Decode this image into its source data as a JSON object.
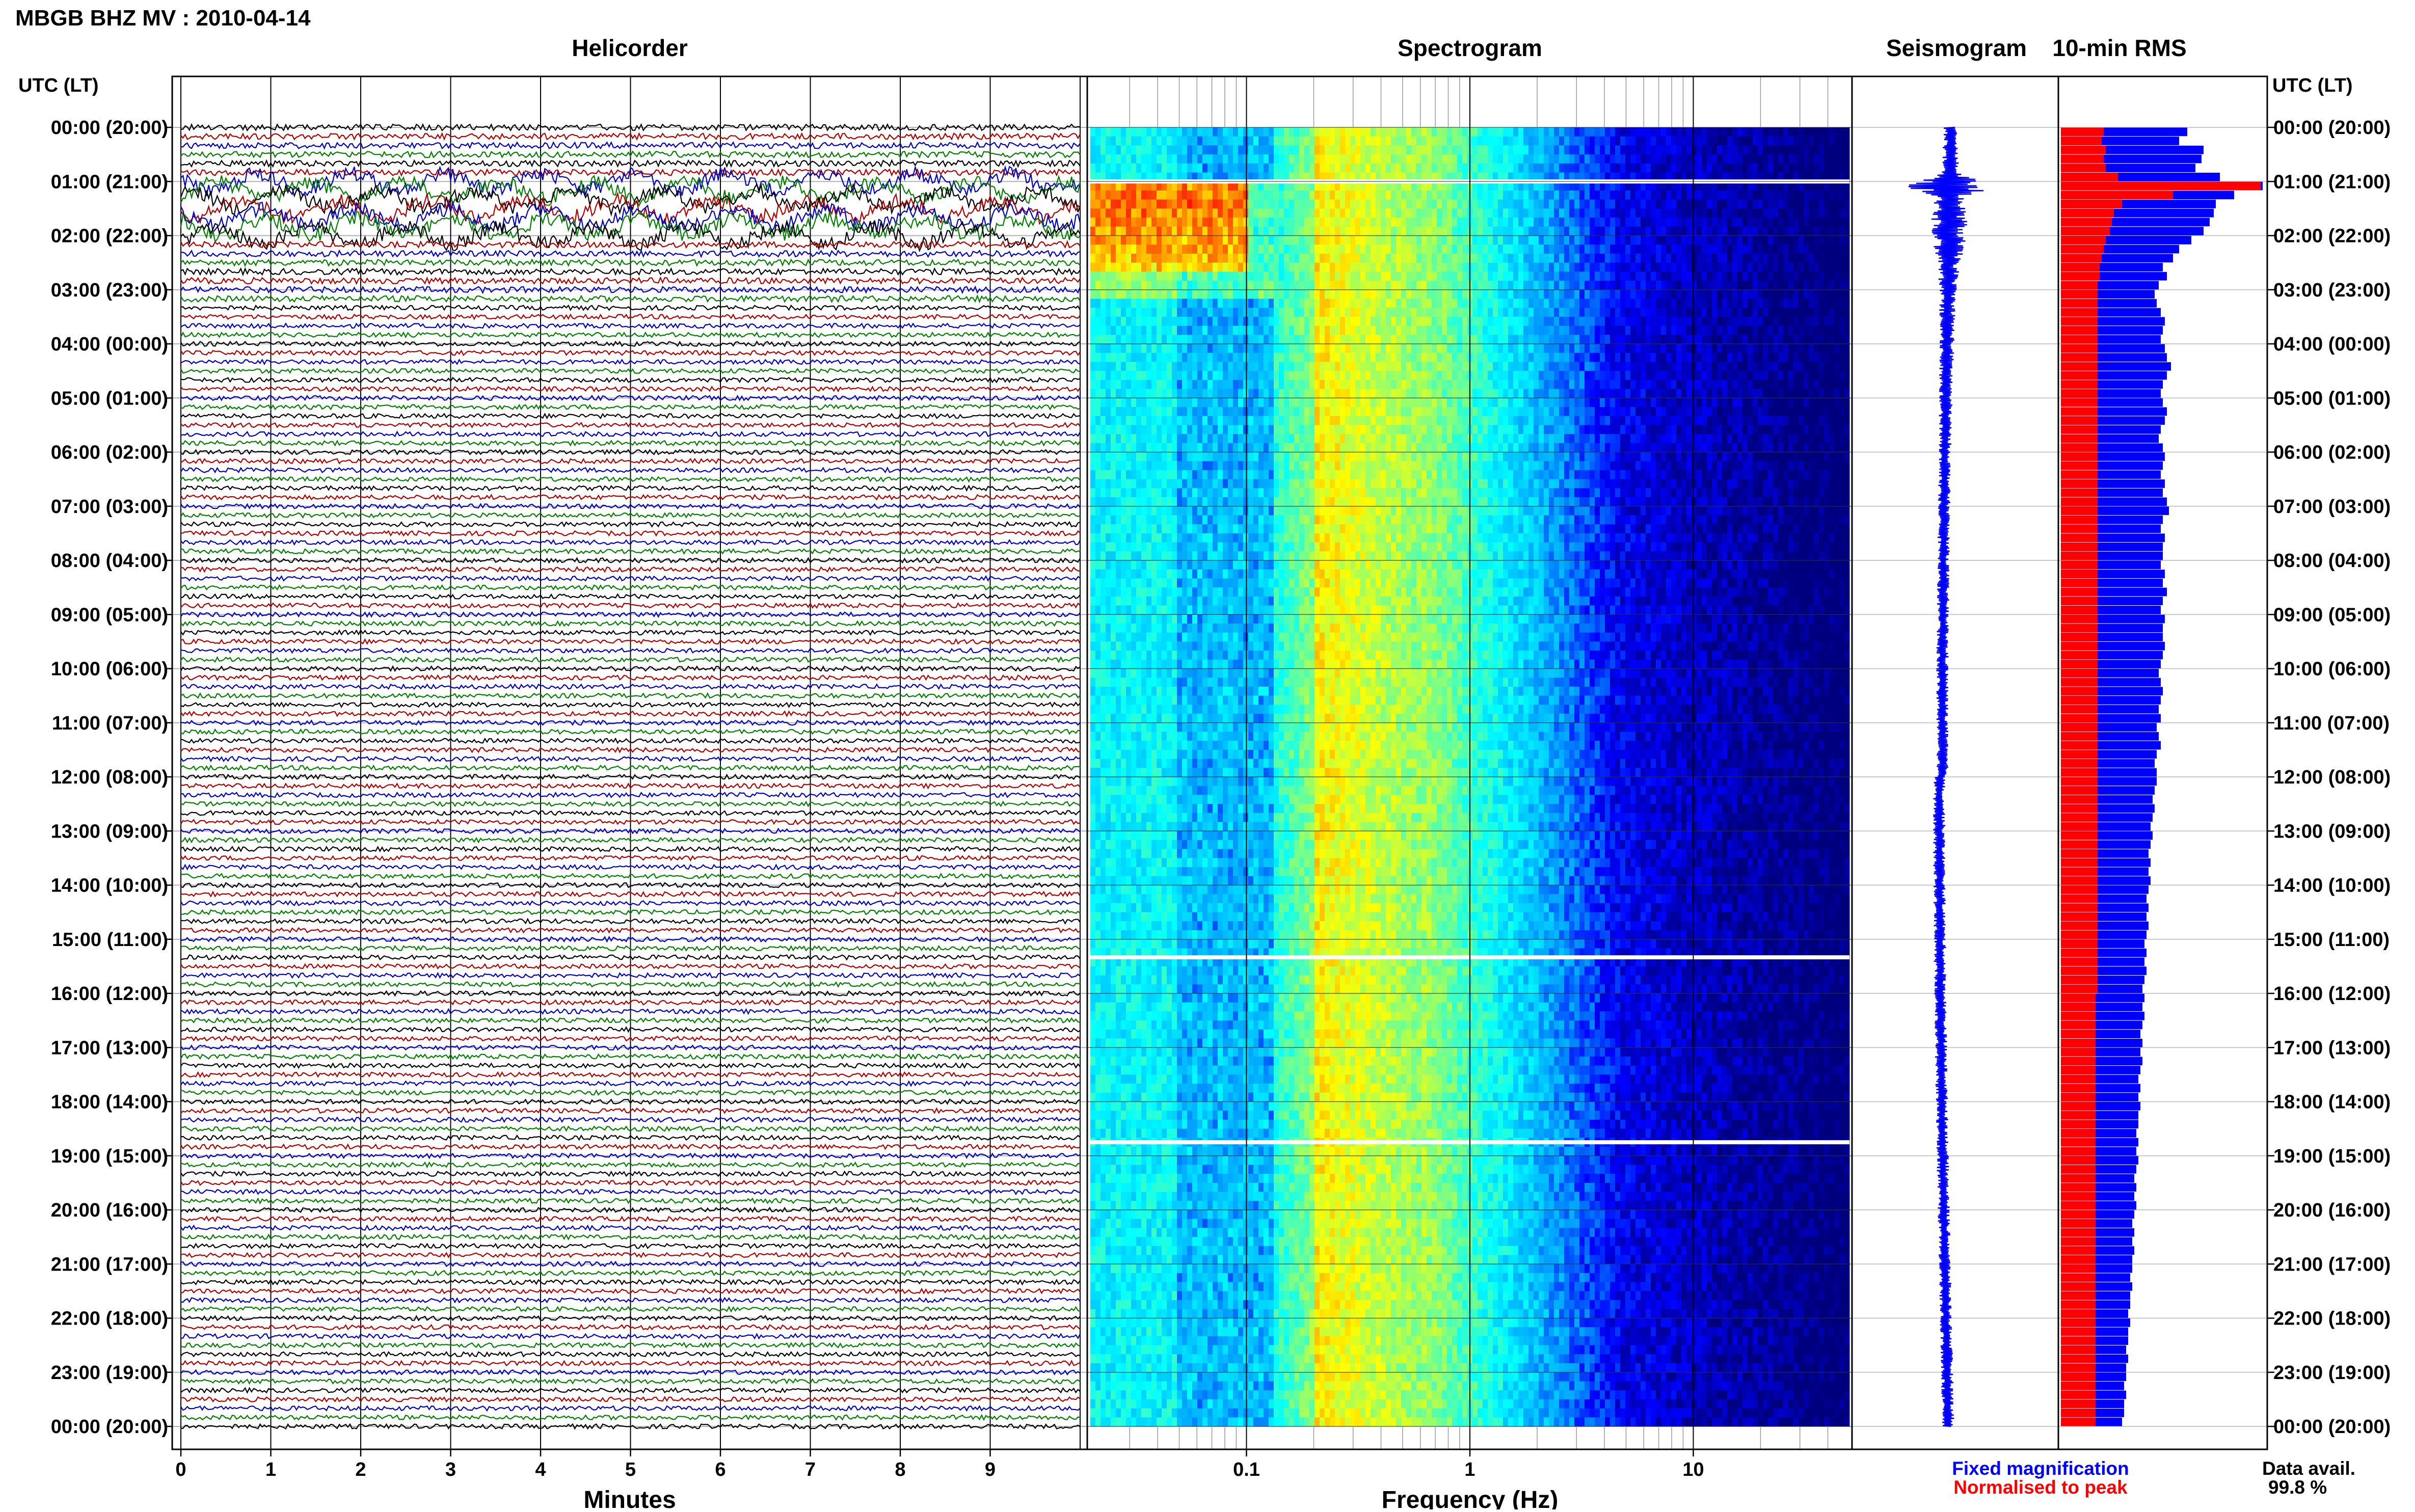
{
  "header": {
    "station_title": "MBGB BHZ MV : 2010-04-14",
    "panel_titles": {
      "helicorder": "Helicorder",
      "spectrogram": "Spectrogram",
      "seismogram": "Seismogram",
      "rms": "10-min RMS"
    },
    "left_axis_label": "UTC (LT)",
    "right_axis_label": "UTC (LT)"
  },
  "chart_data": [
    {
      "type": "line",
      "name": "helicorder",
      "title": "Helicorder",
      "xlabel": "Minutes",
      "ylabel": "UTC (LT)",
      "xlim": [
        0,
        10
      ],
      "x_ticks": [
        "0",
        "1",
        "2",
        "3",
        "4",
        "5",
        "6",
        "7",
        "8",
        "9"
      ],
      "trace_count": 144,
      "trace_interval_minutes": 10,
      "trace_colors": [
        "#000000",
        "#b00000",
        "#0000c0",
        "#008000"
      ],
      "high_amplitude_hours_utc": [
        0.9,
        2.0
      ],
      "grid": true
    },
    {
      "type": "heatmap",
      "name": "spectrogram",
      "title": "Spectrogram",
      "xlabel": "Frequency (Hz)",
      "x_scale": "log",
      "xlim": [
        0.02,
        50
      ],
      "x_ticks": [
        "0.1",
        "1",
        "10"
      ],
      "peak_power_band_hz": [
        0.2,
        0.3
      ],
      "strong_low_freq_event": {
        "time_utc": "01:00-02:30",
        "freq_hz": [
          0.02,
          0.1
        ]
      },
      "data_gaps_utc": [
        "01:00",
        "15:20",
        "18:45"
      ],
      "colormap": [
        "#00007f",
        "#0000ff",
        "#00a0ff",
        "#00ffff",
        "#80ff80",
        "#ffff00",
        "#ff8000",
        "#ff0000"
      ]
    },
    {
      "type": "line",
      "name": "seismogram",
      "title": "Seismogram",
      "color": "#0000ff",
      "event_time_utc": "01:05"
    },
    {
      "type": "bar",
      "name": "rms",
      "title": "10-min RMS",
      "orientation": "horizontal",
      "interval_minutes": 10,
      "series": [
        {
          "name": "Fixed magnification",
          "color": "#0000ff",
          "values": [
            0.62,
            0.58,
            0.7,
            0.69,
            0.66,
            0.78,
            0.99,
            0.85,
            0.76,
            0.75,
            0.73,
            0.7,
            0.64,
            0.58,
            0.55,
            0.5,
            0.52,
            0.48,
            0.46,
            0.47,
            0.49,
            0.51,
            0.5,
            0.49,
            0.51,
            0.52,
            0.54,
            0.52,
            0.5,
            0.49,
            0.5,
            0.52,
            0.51,
            0.49,
            0.48,
            0.5,
            0.51,
            0.5,
            0.49,
            0.51,
            0.5,
            0.52,
            0.53,
            0.5,
            0.49,
            0.51,
            0.5,
            0.5,
            0.49,
            0.51,
            0.5,
            0.52,
            0.5,
            0.49,
            0.51,
            0.5,
            0.5,
            0.51,
            0.5,
            0.49,
            0.48,
            0.49,
            0.5,
            0.49,
            0.48,
            0.49,
            0.47,
            0.48,
            0.49,
            0.47,
            0.46,
            0.47,
            0.47,
            0.46,
            0.45,
            0.46,
            0.45,
            0.44,
            0.45,
            0.44,
            0.43,
            0.44,
            0.43,
            0.44,
            0.43,
            0.42,
            0.43,
            0.42,
            0.43,
            0.42,
            0.41,
            0.42,
            0.41,
            0.42,
            0.41,
            0.4,
            0.41,
            0.4,
            0.41,
            0.4,
            0.39,
            0.4,
            0.39,
            0.4,
            0.39,
            0.38,
            0.39,
            0.38,
            0.39,
            0.38,
            0.38,
            0.37,
            0.38,
            0.37,
            0.38,
            0.37,
            0.36,
            0.37,
            0.36,
            0.37,
            0.36,
            0.35,
            0.36,
            0.35,
            0.36,
            0.35,
            0.35,
            0.34,
            0.35,
            0.34,
            0.34,
            0.33,
            0.34,
            0.33,
            0.33,
            0.32,
            0.33,
            0.32,
            0.32,
            0.31,
            0.32,
            0.31,
            0.31,
            0.3
          ]
        },
        {
          "name": "Normalised to peak",
          "color": "#ff0000",
          "values": [
            0.21,
            0.2,
            0.22,
            0.21,
            0.22,
            0.28,
            0.98,
            0.55,
            0.3,
            0.26,
            0.25,
            0.24,
            0.22,
            0.21,
            0.2,
            0.19,
            0.19,
            0.18,
            0.18,
            0.18,
            0.18,
            0.18,
            0.18,
            0.18,
            0.18,
            0.18,
            0.18,
            0.18,
            0.18,
            0.18,
            0.18,
            0.18,
            0.18,
            0.18,
            0.18,
            0.18,
            0.18,
            0.18,
            0.18,
            0.18,
            0.18,
            0.18,
            0.18,
            0.18,
            0.18,
            0.18,
            0.18,
            0.18,
            0.18,
            0.18,
            0.18,
            0.18,
            0.18,
            0.18,
            0.18,
            0.18,
            0.18,
            0.18,
            0.18,
            0.18,
            0.18,
            0.18,
            0.18,
            0.18,
            0.18,
            0.18,
            0.18,
            0.18,
            0.18,
            0.18,
            0.18,
            0.18,
            0.18,
            0.18,
            0.18,
            0.18,
            0.18,
            0.18,
            0.18,
            0.18,
            0.18,
            0.18,
            0.18,
            0.18,
            0.18,
            0.18,
            0.18,
            0.18,
            0.18,
            0.18,
            0.18,
            0.18,
            0.18,
            0.18,
            0.18,
            0.18,
            0.17,
            0.17,
            0.17,
            0.17,
            0.17,
            0.17,
            0.17,
            0.17,
            0.17,
            0.17,
            0.17,
            0.17,
            0.17,
            0.17,
            0.17,
            0.17,
            0.17,
            0.17,
            0.17,
            0.17,
            0.17,
            0.17,
            0.17,
            0.17,
            0.17,
            0.17,
            0.17,
            0.17,
            0.17,
            0.17,
            0.17,
            0.17,
            0.17,
            0.17,
            0.17,
            0.17,
            0.17,
            0.17,
            0.17,
            0.17,
            0.17,
            0.17,
            0.17,
            0.17,
            0.17,
            0.17,
            0.17,
            0.17
          ]
        }
      ]
    }
  ],
  "time_ticks": [
    "00:00 (20:00)",
    "01:00 (21:00)",
    "02:00 (22:00)",
    "03:00 (23:00)",
    "04:00 (00:00)",
    "05:00 (01:00)",
    "06:00 (02:00)",
    "07:00 (03:00)",
    "08:00 (04:00)",
    "09:00 (05:00)",
    "10:00 (06:00)",
    "11:00 (07:00)",
    "12:00 (08:00)",
    "13:00 (09:00)",
    "14:00 (10:00)",
    "15:00 (11:00)",
    "16:00 (12:00)",
    "17:00 (13:00)",
    "18:00 (14:00)",
    "19:00 (15:00)",
    "20:00 (16:00)",
    "21:00 (17:00)",
    "22:00 (18:00)",
    "23:00 (19:00)",
    "00:00 (20:00)"
  ],
  "axes": {
    "minutes_label": "Minutes",
    "frequency_label": "Frequency (Hz)"
  },
  "legend": {
    "fixed_magnification": "Fixed magnification",
    "normalised_to_peak": "Normalised to peak",
    "fixed_color": "#0000ff",
    "normalised_color": "#ff0000"
  },
  "data_availability": {
    "label": "Data avail.",
    "value": "99.8 %"
  }
}
